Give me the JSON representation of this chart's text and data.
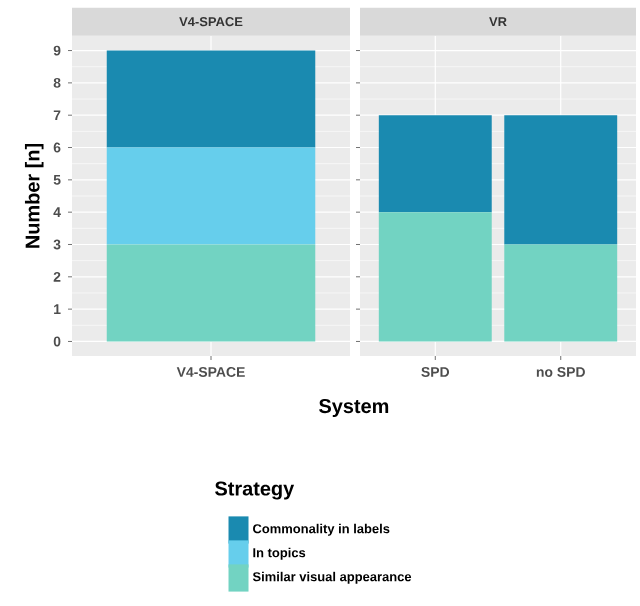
{
  "chart_data": [
    {
      "type": "bar",
      "title": "V4-SPACE",
      "xlabel": "System",
      "ylabel": "Number [n]",
      "legend_title": "Strategy",
      "legend": "bottom",
      "stacked": true,
      "grid": true,
      "categories": [
        "V4-SPACE"
      ],
      "ylim": [
        -0.45,
        9.45
      ],
      "yticks": [
        0,
        1,
        2,
        3,
        4,
        5,
        6,
        7,
        8,
        9
      ],
      "series": [
        {
          "name": "Similar visual appearance",
          "color": "#72d3c2",
          "values": [
            3
          ]
        },
        {
          "name": "In topics",
          "color": "#66ceec",
          "values": [
            3
          ]
        },
        {
          "name": "Commonality in labels",
          "color": "#1a8ab0",
          "values": [
            3
          ]
        }
      ]
    },
    {
      "type": "bar",
      "title": "VR",
      "stacked": true,
      "grid": true,
      "tick_labels": "x",
      "categories": [
        "SPD",
        "no SPD"
      ],
      "ylim": [
        -0.45,
        9.45
      ],
      "yticks": [
        0,
        1,
        2,
        3,
        4,
        5,
        6,
        7,
        8,
        9
      ],
      "series": [
        {
          "color": "#72d3c2",
          "values": [
            4,
            3
          ]
        },
        {
          "color": "#1a8ab0",
          "values": [
            3,
            4
          ]
        }
      ]
    }
  ]
}
